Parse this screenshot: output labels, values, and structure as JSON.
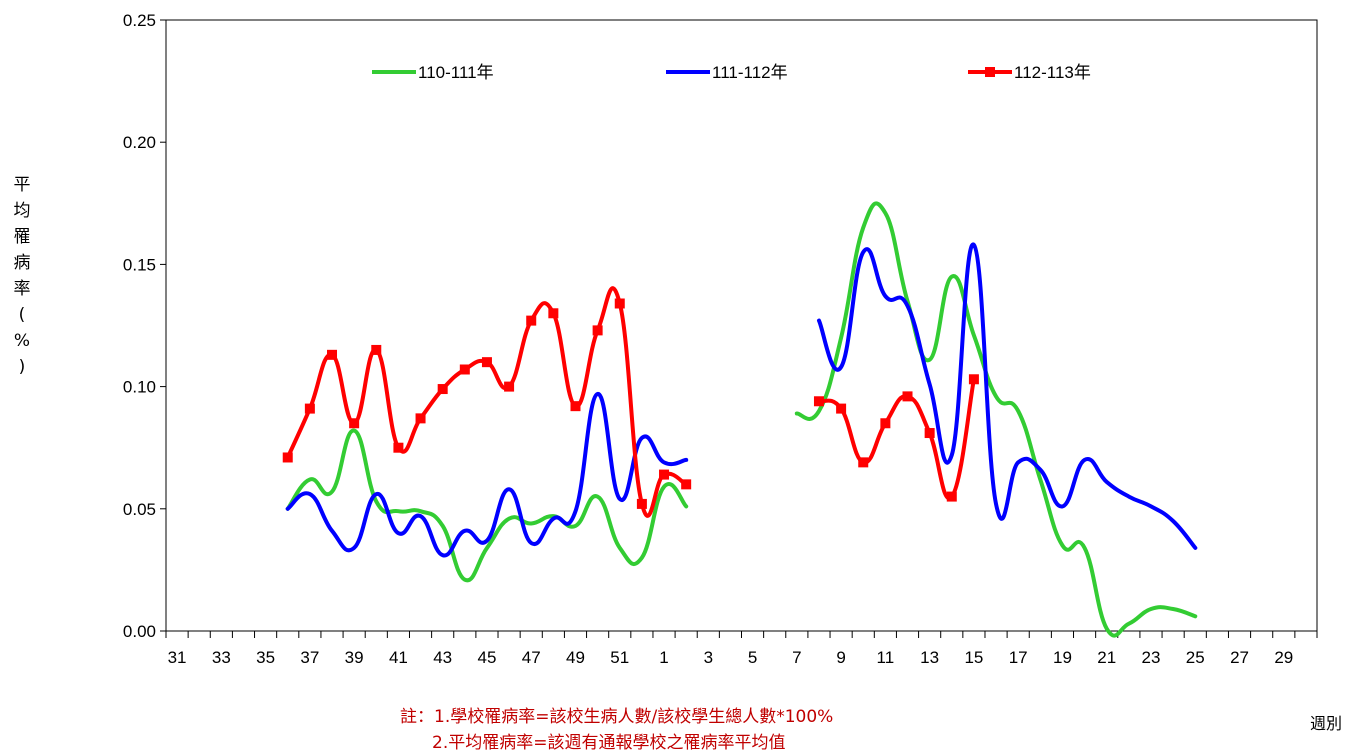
{
  "chart_data": {
    "type": "line",
    "ylabel": "平均罹病率(%)",
    "xlabel": "週別",
    "ylim": [
      0,
      0.25
    ],
    "yticks": [
      "0.00",
      "0.05",
      "0.10",
      "0.15",
      "0.20",
      "0.25"
    ],
    "x_weeks": [
      31,
      32,
      33,
      34,
      35,
      36,
      37,
      38,
      39,
      40,
      41,
      42,
      43,
      44,
      45,
      46,
      47,
      48,
      49,
      50,
      51,
      52,
      1,
      2,
      3,
      4,
      5,
      6,
      7,
      8,
      9,
      10,
      11,
      12,
      13,
      14,
      15,
      16,
      17,
      18,
      19,
      20,
      21,
      22,
      23,
      24,
      25,
      26,
      27,
      28,
      29,
      30
    ],
    "x_tick_labels": [
      "31",
      "33",
      "35",
      "37",
      "39",
      "41",
      "43",
      "45",
      "47",
      "49",
      "51",
      "1",
      "3",
      "5",
      "7",
      "9",
      "11",
      "13",
      "15",
      "17",
      "19",
      "21",
      "23",
      "25",
      "27",
      "29"
    ],
    "legend_position": "top",
    "series": [
      {
        "name": "110-111年",
        "color": "#33cc33",
        "marker": "none",
        "segments": [
          [
            [
              36,
              0.05
            ],
            [
              37,
              0.062
            ],
            [
              38,
              0.057
            ],
            [
              39,
              0.082
            ],
            [
              40,
              0.053
            ],
            [
              41,
              0.049
            ],
            [
              42,
              0.049
            ],
            [
              43,
              0.043
            ],
            [
              44,
              0.021
            ],
            [
              45,
              0.034
            ],
            [
              46,
              0.046
            ],
            [
              47,
              0.044
            ],
            [
              48,
              0.047
            ],
            [
              49,
              0.043
            ],
            [
              50,
              0.055
            ],
            [
              51,
              0.034
            ],
            [
              52,
              0.03
            ],
            [
              1,
              0.059
            ],
            [
              2,
              0.051
            ]
          ],
          [
            [
              7,
              0.089
            ],
            [
              8,
              0.09
            ],
            [
              9,
              0.12
            ],
            [
              10,
              0.165
            ],
            [
              11,
              0.171
            ],
            [
              12,
              0.135
            ],
            [
              13,
              0.111
            ],
            [
              14,
              0.145
            ],
            [
              15,
              0.121
            ],
            [
              16,
              0.096
            ],
            [
              17,
              0.09
            ],
            [
              18,
              0.062
            ],
            [
              19,
              0.035
            ],
            [
              20,
              0.034
            ],
            [
              21,
              0.001
            ],
            [
              22,
              0.003
            ],
            [
              23,
              0.009
            ],
            [
              24,
              0.009
            ],
            [
              25,
              0.006
            ]
          ]
        ]
      },
      {
        "name": "111-112年",
        "color": "#0000ff",
        "marker": "none",
        "segments": [
          [
            [
              36,
              0.05
            ],
            [
              37,
              0.056
            ],
            [
              38,
              0.041
            ],
            [
              39,
              0.034
            ],
            [
              40,
              0.056
            ],
            [
              41,
              0.04
            ],
            [
              42,
              0.047
            ],
            [
              43,
              0.031
            ],
            [
              44,
              0.041
            ],
            [
              45,
              0.037
            ],
            [
              46,
              0.058
            ],
            [
              47,
              0.036
            ],
            [
              48,
              0.046
            ],
            [
              49,
              0.049
            ],
            [
              50,
              0.097
            ],
            [
              51,
              0.054
            ],
            [
              52,
              0.079
            ],
            [
              1,
              0.069
            ],
            [
              2,
              0.07
            ]
          ],
          [
            [
              8,
              0.127
            ],
            [
              9,
              0.108
            ],
            [
              10,
              0.155
            ],
            [
              11,
              0.137
            ],
            [
              12,
              0.133
            ],
            [
              13,
              0.101
            ],
            [
              14,
              0.072
            ],
            [
              15,
              0.158
            ],
            [
              16,
              0.052
            ],
            [
              17,
              0.069
            ],
            [
              18,
              0.066
            ],
            [
              19,
              0.051
            ],
            [
              20,
              0.07
            ],
            [
              21,
              0.061
            ],
            [
              22,
              0.055
            ],
            [
              23,
              0.051
            ],
            [
              24,
              0.045
            ],
            [
              25,
              0.034
            ]
          ]
        ]
      },
      {
        "name": "112-113年",
        "color": "#ff0000",
        "marker": "square",
        "segments": [
          [
            [
              36,
              0.071
            ],
            [
              37,
              0.091
            ],
            [
              38,
              0.113
            ],
            [
              39,
              0.085
            ],
            [
              40,
              0.115
            ],
            [
              41,
              0.075
            ],
            [
              42,
              0.087
            ],
            [
              43,
              0.099
            ],
            [
              44,
              0.107
            ],
            [
              45,
              0.11
            ],
            [
              46,
              0.1
            ],
            [
              47,
              0.127
            ],
            [
              48,
              0.13
            ],
            [
              49,
              0.092
            ],
            [
              50,
              0.123
            ],
            [
              51,
              0.134
            ],
            [
              52,
              0.052
            ],
            [
              1,
              0.064
            ],
            [
              2,
              0.06
            ]
          ],
          [
            [
              8,
              0.094
            ],
            [
              9,
              0.091
            ],
            [
              10,
              0.069
            ],
            [
              11,
              0.085
            ],
            [
              12,
              0.096
            ],
            [
              13,
              0.081
            ],
            [
              14,
              0.055
            ],
            [
              15,
              0.103
            ]
          ]
        ]
      }
    ]
  },
  "notes": {
    "line1": "註：1.學校罹病率=該校生病人數/該校學生總人數*100%",
    "line2": "2.平均罹病率=該週有通報學校之罹病率平均值"
  }
}
